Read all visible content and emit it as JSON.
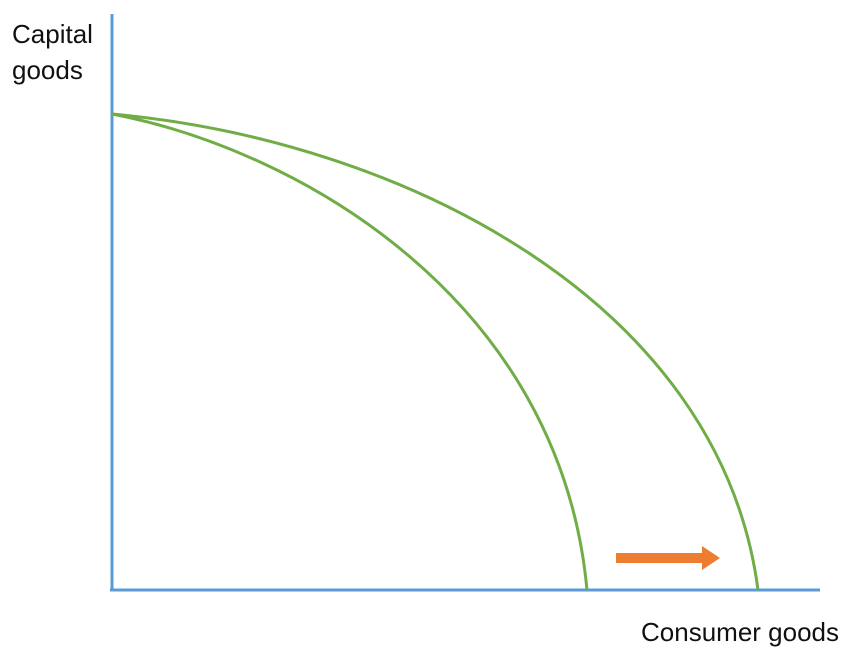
{
  "diagram": {
    "type": "production-possibility-frontier",
    "y_axis_label_lines": [
      "Capital",
      "goods"
    ],
    "x_axis_label": "Consumer goods",
    "colors": {
      "axis": "#5b9bd5",
      "curve": "#70ad47",
      "arrow": "#ed7d31"
    },
    "curves": [
      {
        "name": "original-frontier"
      },
      {
        "name": "shifted-frontier"
      }
    ],
    "shift_direction": "right",
    "icons": [
      "right-arrow-icon"
    ]
  }
}
